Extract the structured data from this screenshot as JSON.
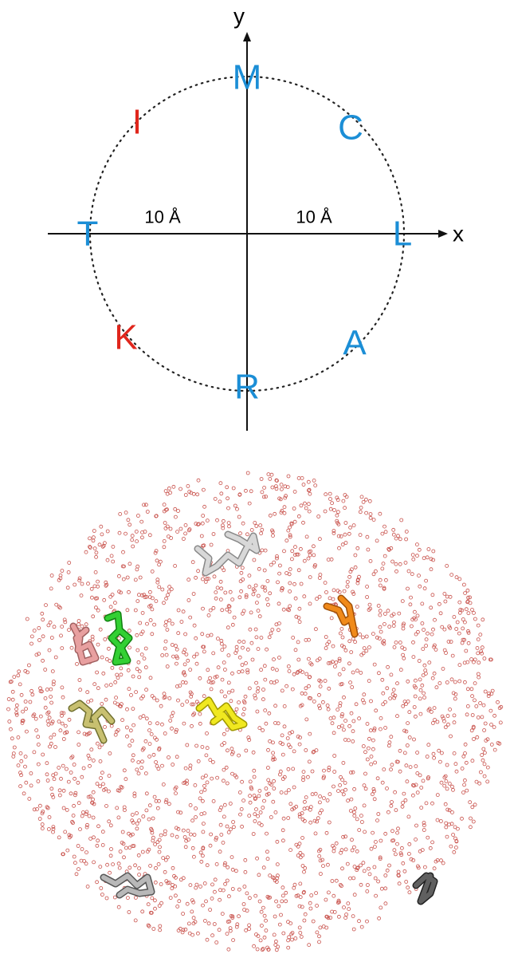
{
  "axes": {
    "x_label": "x",
    "y_label": "y",
    "scale_labels": [
      "10 Å",
      "10 Å"
    ]
  },
  "residues": [
    {
      "label": "M",
      "color": "#1b8ed6"
    },
    {
      "label": "C",
      "color": "#1b8ed6"
    },
    {
      "label": "L",
      "color": "#1b8ed6"
    },
    {
      "label": "A",
      "color": "#1b8ed6"
    },
    {
      "label": "R",
      "color": "#1b8ed6"
    },
    {
      "label": "K",
      "color": "#e0261c"
    },
    {
      "label": "T",
      "color": "#1b8ed6"
    },
    {
      "label": "I",
      "color": "#e0261c"
    }
  ]
}
